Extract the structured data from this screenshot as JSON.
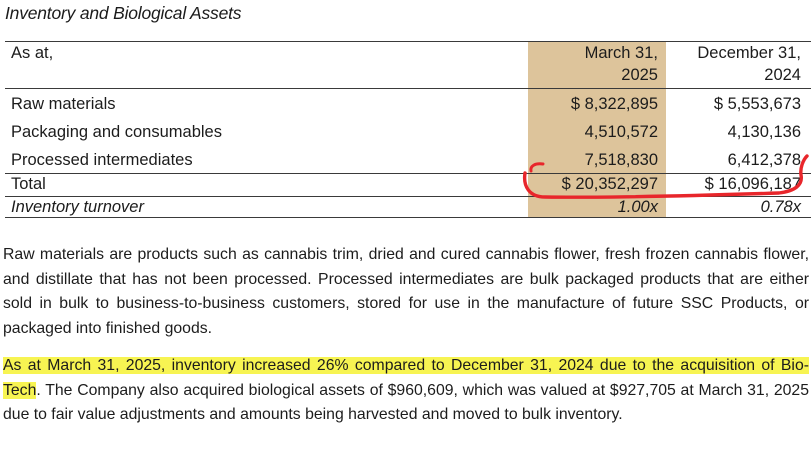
{
  "section": {
    "title": "Inventory and Biological Assets"
  },
  "table": {
    "header": {
      "label": "As at,",
      "col1_line1": "March 31,",
      "col1_line2": "2025",
      "col2_line1": "December 31,",
      "col2_line2": "2024"
    },
    "rows": [
      {
        "label": "Raw materials",
        "col1": "$  8,322,895",
        "col2": "$  5,553,673"
      },
      {
        "label": "Packaging and consumables",
        "col1": "4,510,572",
        "col2": "4,130,136"
      },
      {
        "label": "Processed intermediates",
        "col1": "7,518,830",
        "col2": "6,412,378"
      }
    ],
    "total": {
      "label": "Total",
      "col1": "$ 20,352,297",
      "col2": "$ 16,096,187"
    },
    "turnover": {
      "label": "Inventory turnover",
      "col1": "1.00x",
      "col2": "0.78x"
    },
    "shade_color": "#ddc49b",
    "annotation_color": "#e8262b"
  },
  "paragraphs": {
    "p1": "Raw materials are products such as cannabis trim, dried and cured cannabis flower, fresh frozen cannabis flower, and distillate that has not been processed. Processed intermediates are bulk packaged products that are either sold in bulk to business-to-business customers, stored for use in the manufacture of future SSC Products, or packaged into finished goods.",
    "p2_highlighted": "As at March 31, 2025, inventory increased 26% compared to December 31, 2024 due to the acquisition of Bio-Tech",
    "p2_rest": ". The Company also acquired biological assets of $960,609, which was valued at $927,705 at March 31, 2025 due to fair value adjustments and amounts being harvested and moved to bulk inventory.",
    "highlight_color": "#f7f452"
  }
}
